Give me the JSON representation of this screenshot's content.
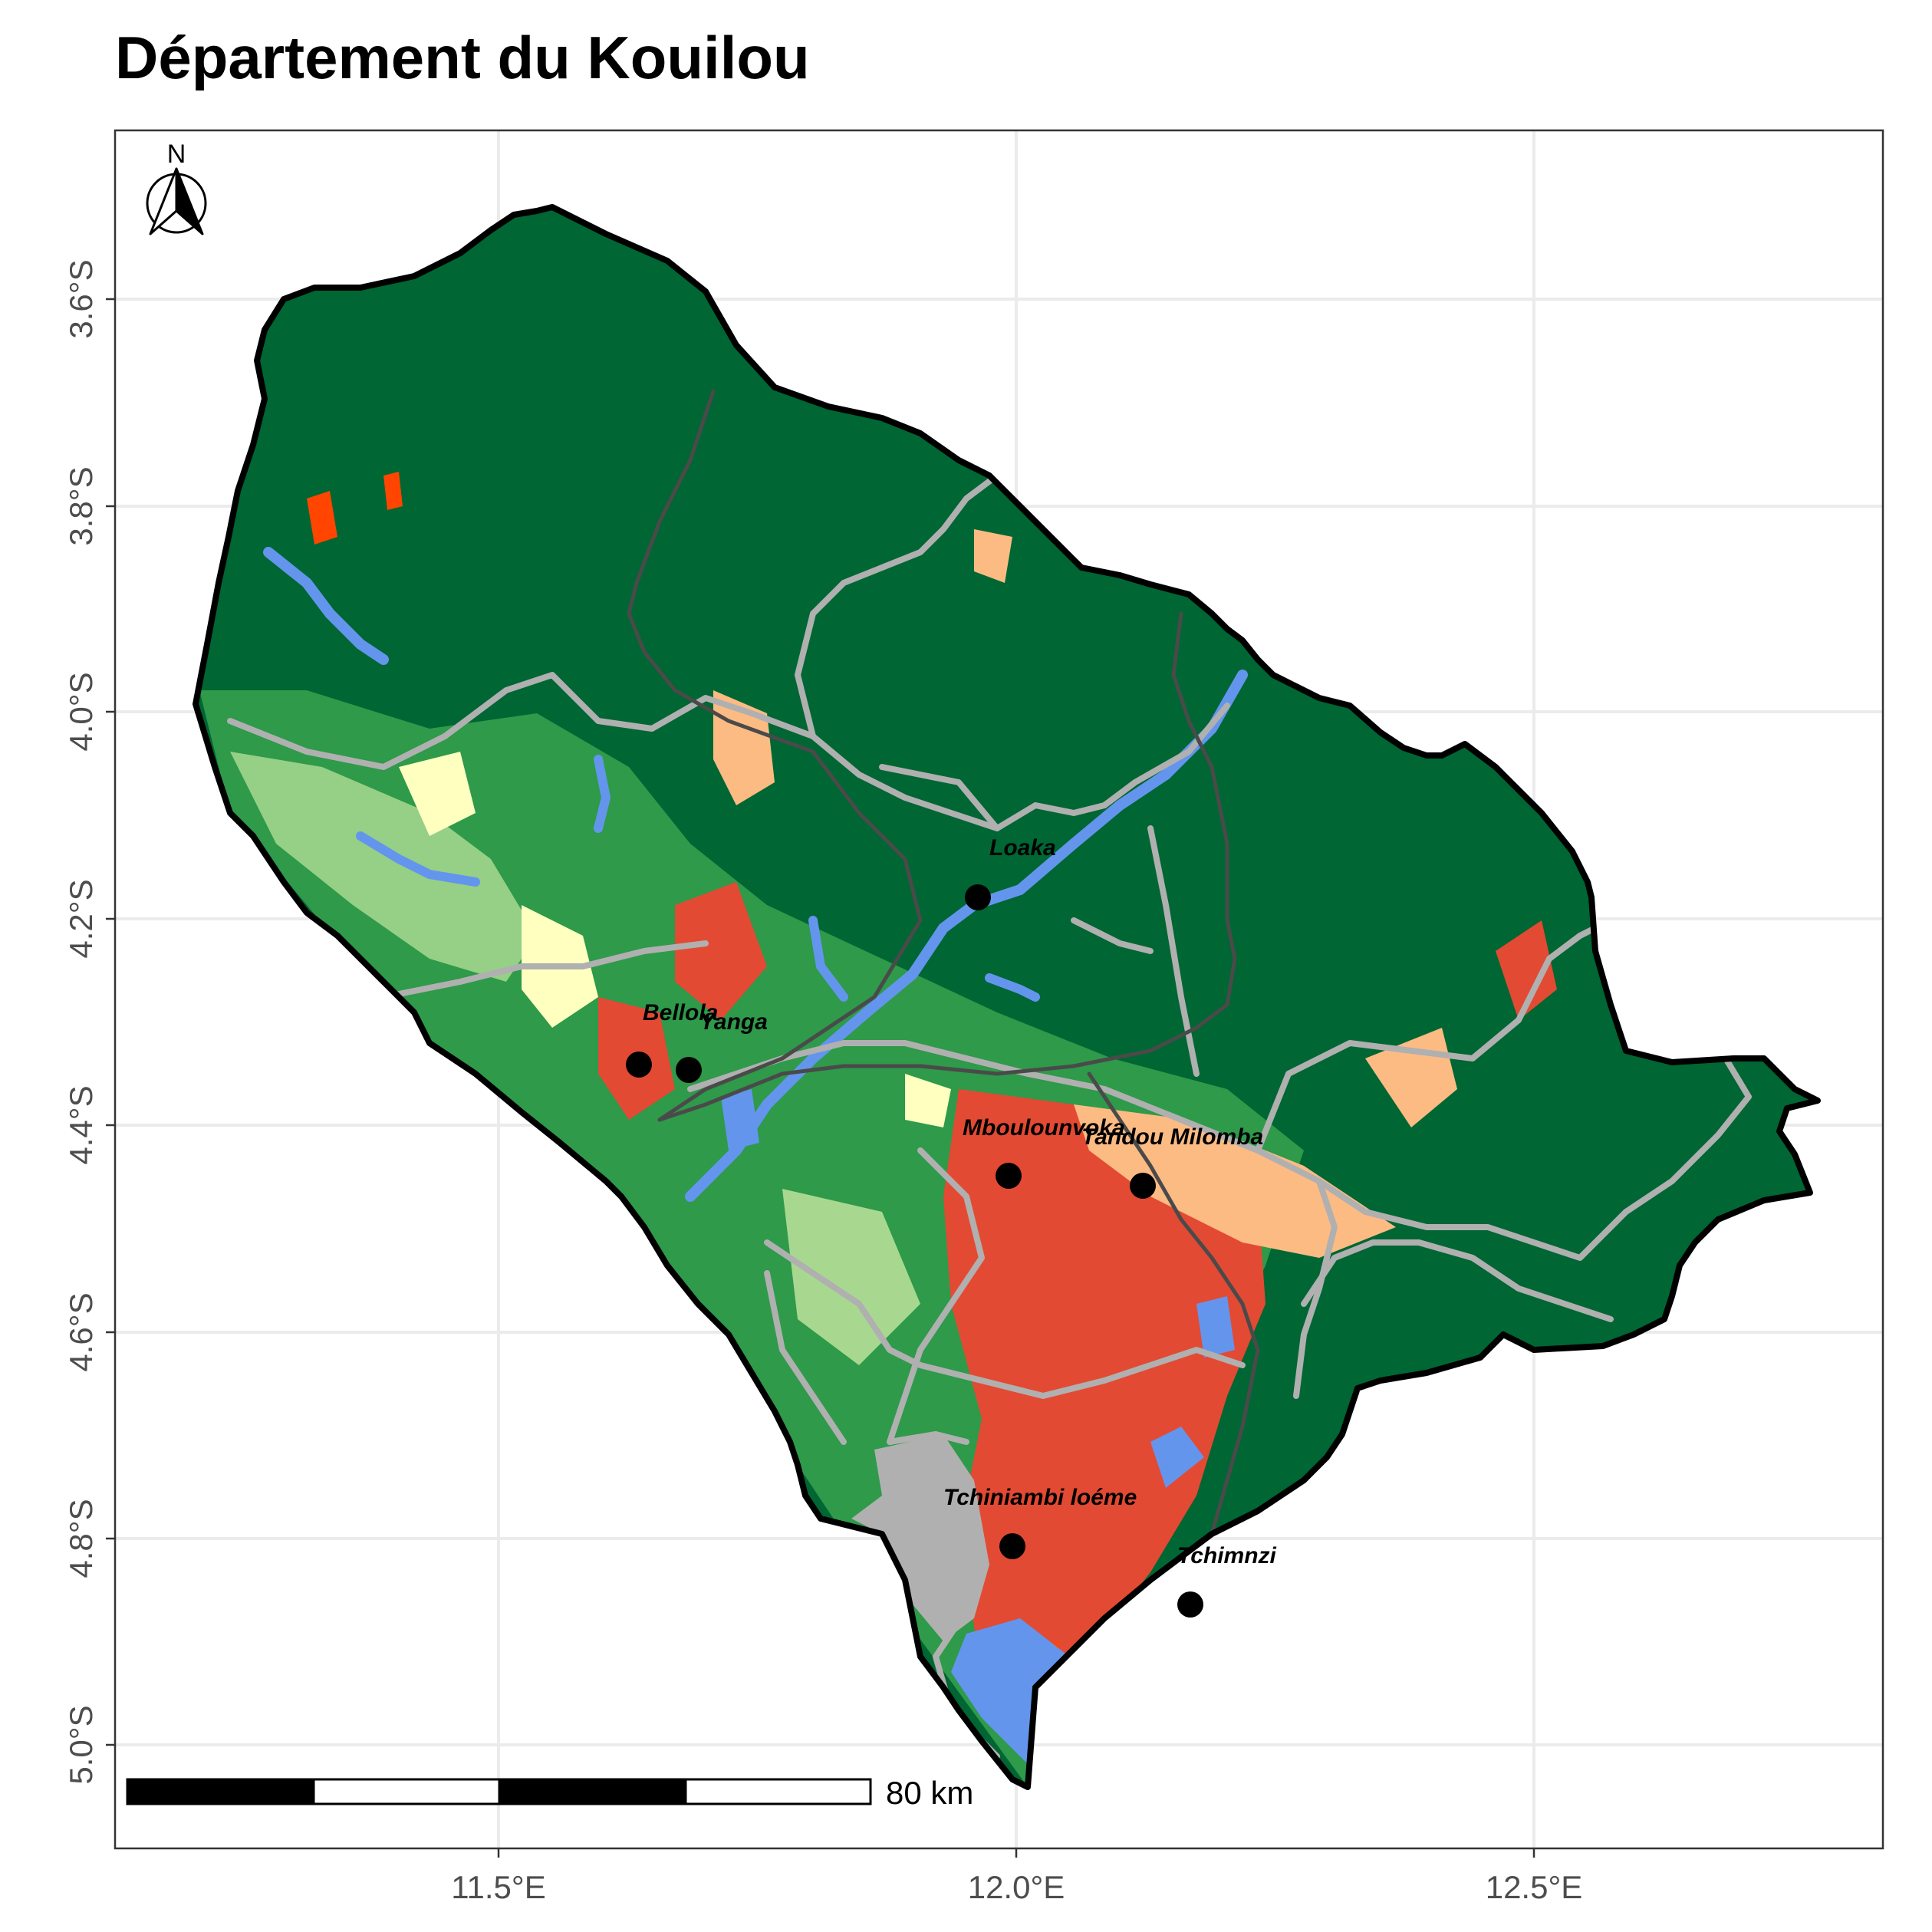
{
  "title": "Département du Kouilou",
  "axes": {
    "x_ticks": [
      "11.5°E",
      "12.0°E",
      "12.5°E"
    ],
    "y_ticks": [
      "3.6°S",
      "3.8°S",
      "4.0°S",
      "4.2°S",
      "4.4°S",
      "4.6°S",
      "4.8°S",
      "5.0°S"
    ]
  },
  "north_arrow": {
    "label": "N"
  },
  "scale_bar": {
    "label": "80 km"
  },
  "towns": [
    {
      "name": "Loaka"
    },
    {
      "name": "Bellola"
    },
    {
      "name": "Yanga"
    },
    {
      "name": "Mboulounvoka"
    },
    {
      "name": "Tandou Milomba"
    },
    {
      "name": "Tchiniambi loéme"
    },
    {
      "name": "Tchimnzi"
    }
  ],
  "colors": {
    "dense_forest": "#006633",
    "secondary_forest": "#2e9a4a",
    "light_vegetation": "#a8d890",
    "savanna": "#ffffc0",
    "cropland": "#e34a33",
    "mosaic": "#fdbb84",
    "bare": "#ff4500",
    "water": "#6495ed",
    "urban": "#b0b0b0",
    "roads": "#b0b0b0",
    "railway": "#4a4a4a",
    "grid": "#ebebeb"
  }
}
